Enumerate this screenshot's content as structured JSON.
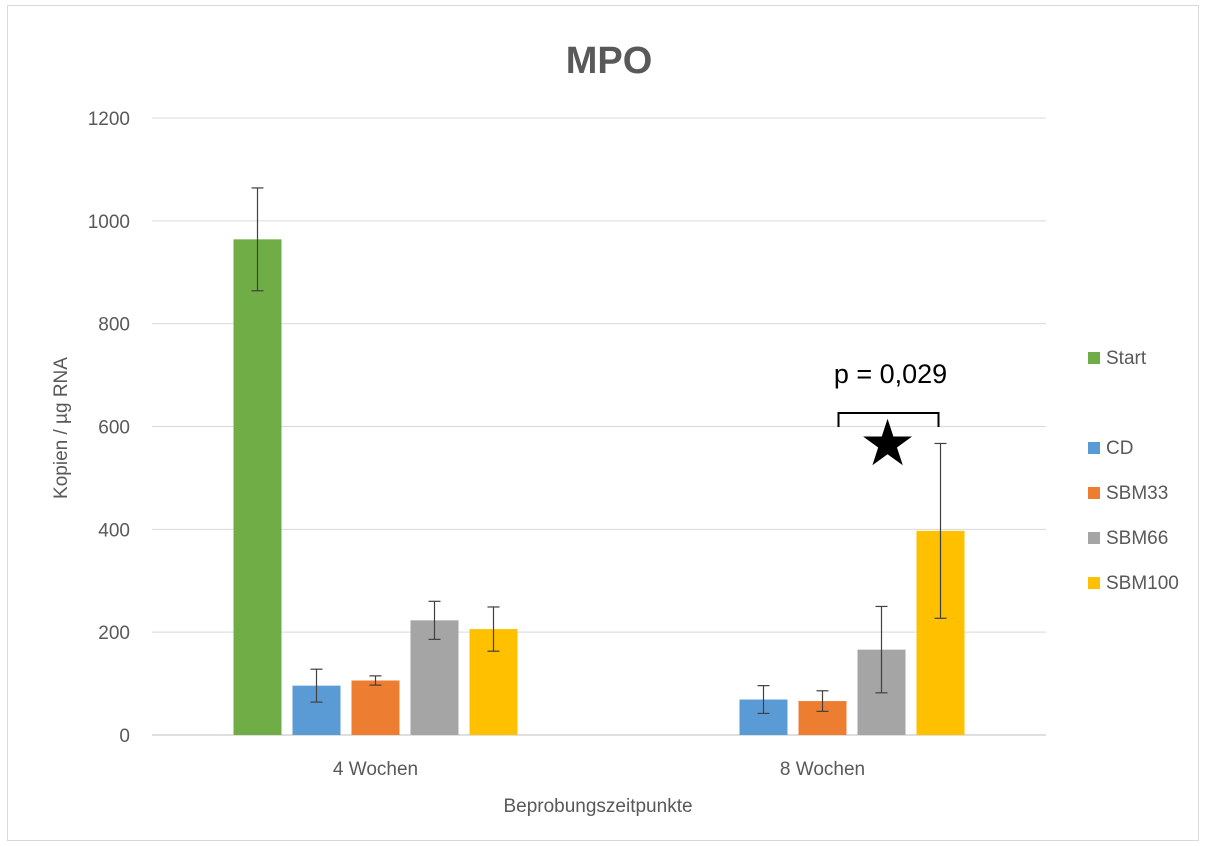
{
  "chart_data": {
    "type": "bar",
    "title": "MPO",
    "xlabel": "Beprobungszeitpunkte",
    "ylabel": "Kopien / µg RNA",
    "ylim": [
      0,
      1200
    ],
    "yticks": [
      0,
      200,
      400,
      600,
      800,
      1000,
      1200
    ],
    "grid": true,
    "legend_position": "right",
    "categories": [
      "4 Wochen",
      "8 Wochen"
    ],
    "series": [
      {
        "name": "Start",
        "color": "#70ad47",
        "values": [
          964,
          null
        ],
        "error": [
          100,
          null
        ]
      },
      {
        "name": "CD",
        "color": "#5b9bd5",
        "values": [
          96,
          69
        ],
        "error": [
          32,
          27
        ]
      },
      {
        "name": "SBM33",
        "color": "#ed7d31",
        "values": [
          106,
          66
        ],
        "error": [
          9,
          20
        ]
      },
      {
        "name": "SBM66",
        "color": "#a5a5a5",
        "values": [
          223,
          166
        ],
        "error": [
          37,
          84
        ]
      },
      {
        "name": "SBM100",
        "color": "#ffc000",
        "values": [
          206,
          397
        ],
        "error": [
          43,
          170
        ]
      }
    ],
    "annotations": [
      {
        "text": "p = 0,029",
        "category": "8 Wochen",
        "between": [
          "SBM66",
          "SBM100"
        ],
        "marker": "★"
      }
    ]
  }
}
